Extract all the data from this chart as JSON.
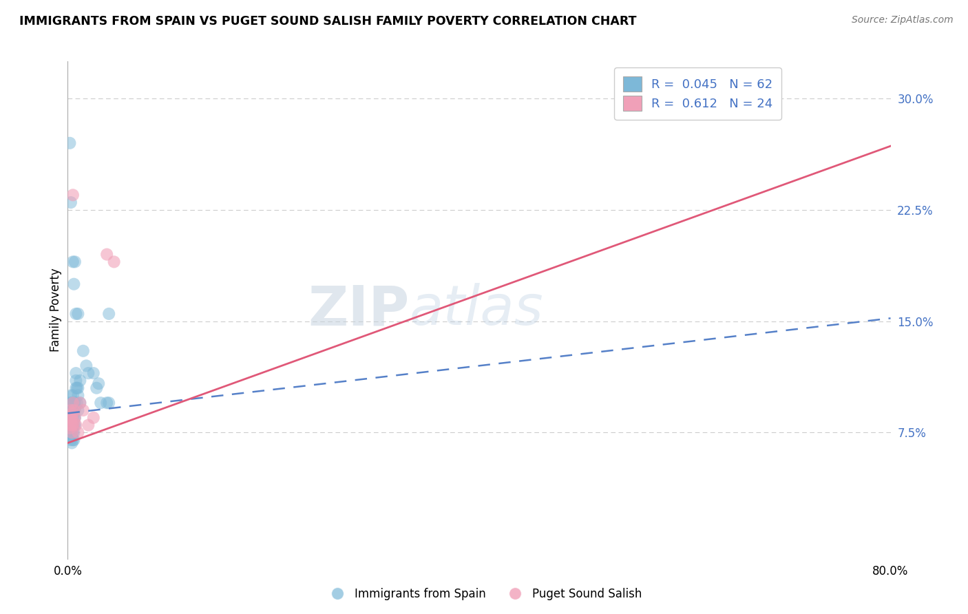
{
  "title": "IMMIGRANTS FROM SPAIN VS PUGET SOUND SALISH FAMILY POVERTY CORRELATION CHART",
  "source": "Source: ZipAtlas.com",
  "ylabel": "Family Poverty",
  "yticks": [
    "7.5%",
    "15.0%",
    "22.5%",
    "30.0%"
  ],
  "ytick_vals": [
    0.075,
    0.15,
    0.225,
    0.3
  ],
  "xlim": [
    0.0,
    0.8
  ],
  "ylim": [
    -0.01,
    0.325
  ],
  "legend1_R": "0.045",
  "legend1_N": "62",
  "legend2_R": "0.612",
  "legend2_N": "24",
  "blue_color": "#7db8d8",
  "pink_color": "#f0a0b8",
  "blue_line_color": "#5580c8",
  "pink_line_color": "#e05878",
  "watermark_zip": "ZIP",
  "watermark_atlas": "atlas",
  "blue_line_x0": 0.0,
  "blue_line_y0": 0.088,
  "blue_line_x1": 0.8,
  "blue_line_y1": 0.152,
  "pink_line_x0": 0.0,
  "pink_line_y0": 0.068,
  "pink_line_x1": 0.8,
  "pink_line_y1": 0.268,
  "blue_scatter_x": [
    0.002,
    0.002,
    0.002,
    0.003,
    0.003,
    0.003,
    0.003,
    0.003,
    0.003,
    0.004,
    0.004,
    0.004,
    0.004,
    0.004,
    0.004,
    0.004,
    0.004,
    0.005,
    0.005,
    0.005,
    0.005,
    0.005,
    0.005,
    0.005,
    0.006,
    0.006,
    0.006,
    0.006,
    0.006,
    0.006,
    0.007,
    0.007,
    0.007,
    0.007,
    0.008,
    0.008,
    0.008,
    0.009,
    0.009,
    0.01,
    0.01,
    0.01,
    0.012,
    0.012,
    0.015,
    0.018,
    0.02,
    0.025,
    0.028,
    0.03,
    0.032,
    0.038,
    0.04,
    0.002,
    0.003,
    0.005,
    0.006,
    0.007,
    0.008,
    0.01,
    0.04
  ],
  "blue_scatter_y": [
    0.095,
    0.085,
    0.08,
    0.1,
    0.09,
    0.085,
    0.08,
    0.075,
    0.07,
    0.095,
    0.09,
    0.085,
    0.082,
    0.078,
    0.075,
    0.072,
    0.068,
    0.1,
    0.095,
    0.09,
    0.085,
    0.08,
    0.075,
    0.07,
    0.095,
    0.09,
    0.085,
    0.08,
    0.075,
    0.07,
    0.095,
    0.09,
    0.085,
    0.08,
    0.115,
    0.11,
    0.105,
    0.105,
    0.095,
    0.105,
    0.1,
    0.09,
    0.11,
    0.095,
    0.13,
    0.12,
    0.115,
    0.115,
    0.105,
    0.108,
    0.095,
    0.095,
    0.095,
    0.27,
    0.23,
    0.19,
    0.175,
    0.19,
    0.155,
    0.155,
    0.155
  ],
  "pink_scatter_x": [
    0.002,
    0.002,
    0.003,
    0.003,
    0.003,
    0.004,
    0.004,
    0.004,
    0.005,
    0.005,
    0.005,
    0.006,
    0.006,
    0.007,
    0.008,
    0.01,
    0.012,
    0.015,
    0.02,
    0.025,
    0.005,
    0.038,
    0.045
  ],
  "pink_scatter_y": [
    0.085,
    0.078,
    0.09,
    0.085,
    0.08,
    0.085,
    0.08,
    0.075,
    0.095,
    0.088,
    0.08,
    0.09,
    0.082,
    0.085,
    0.08,
    0.075,
    0.095,
    0.09,
    0.08,
    0.085,
    0.235,
    0.195,
    0.19
  ]
}
